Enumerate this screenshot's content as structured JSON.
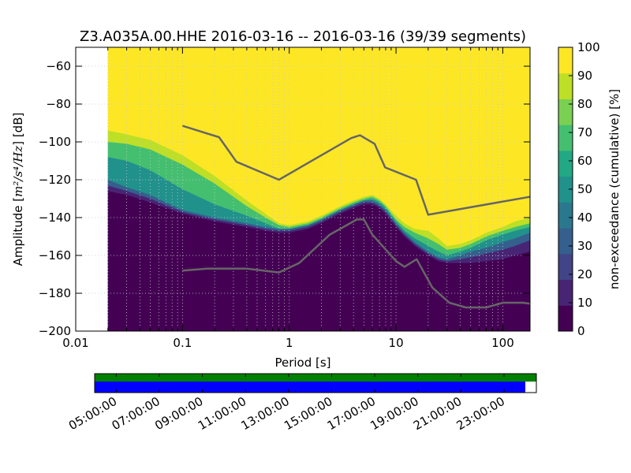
{
  "chart_data": {
    "type": "heatmap",
    "title": "Z3.A035A.00.HHE   2016-03-16 -- 2016-03-16  (39/39 segments)",
    "xlabel": "Period [s]",
    "ylabel_prefix": "Amplitude [",
    "ylabel_math": "m²/s⁴/Hz",
    "ylabel_suffix": "] [dB]",
    "xscale": "log",
    "xlim": [
      0.01,
      180
    ],
    "ylim": [
      -200,
      -50
    ],
    "x_ticks": [
      {
        "value": 0.01,
        "label": "0.01"
      },
      {
        "value": 0.1,
        "label": "0.1"
      },
      {
        "value": 1,
        "label": "1"
      },
      {
        "value": 10,
        "label": "10"
      },
      {
        "value": 100,
        "label": "100"
      }
    ],
    "y_ticks": [
      -60,
      -80,
      -100,
      -120,
      -140,
      -160,
      -180,
      -200
    ],
    "grid": true,
    "data_period_start": 0.02,
    "colorbar": {
      "label": "non-exceedance (cumulative) [%]",
      "range": [
        0,
        100
      ],
      "ticks": [
        0,
        10,
        20,
        30,
        40,
        50,
        60,
        70,
        80,
        90,
        100
      ],
      "colors": [
        "#440154",
        "#482475",
        "#414487",
        "#355f8d",
        "#2a788e",
        "#21918c",
        "#22a884",
        "#44bf70",
        "#7ad151",
        "#bddf26",
        "#fde725"
      ]
    },
    "bands": {
      "period": [
        0.02,
        0.03,
        0.05,
        0.1,
        0.2,
        0.4,
        0.6,
        0.8,
        1,
        1.5,
        2,
        3,
        4,
        5,
        6,
        7,
        8,
        10,
        12,
        15,
        20,
        25,
        30,
        40,
        50,
        70,
        100,
        130,
        180
      ],
      "p0": [
        -126,
        -128,
        -132,
        -138,
        -142,
        -145,
        -147,
        -148,
        -148,
        -146,
        -143,
        -138,
        -135,
        -133,
        -133,
        -135,
        -138,
        -145,
        -150,
        -155,
        -160,
        -163,
        -164,
        -164,
        -164,
        -163,
        -162,
        -160,
        -158
      ],
      "p10": [
        -123,
        -126,
        -130,
        -137,
        -141,
        -144,
        -146,
        -147,
        -147,
        -145,
        -142,
        -137,
        -134,
        -132,
        -132,
        -134,
        -137,
        -144,
        -149,
        -154,
        -159,
        -162,
        -163,
        -162,
        -161,
        -159,
        -157,
        -155,
        -152
      ],
      "p30": [
        -120,
        -124,
        -128,
        -136,
        -140,
        -143,
        -145,
        -146,
        -146,
        -144,
        -141,
        -136,
        -133,
        -131,
        -131,
        -133,
        -136,
        -143,
        -148,
        -153,
        -158,
        -161,
        -162,
        -160,
        -158,
        -156,
        -153,
        -151,
        -148
      ],
      "p60": [
        -108,
        -110,
        -115,
        -125,
        -133,
        -139,
        -143,
        -146,
        -146,
        -144,
        -141,
        -136,
        -133,
        -131,
        -130,
        -132,
        -135,
        -142,
        -147,
        -151,
        -155,
        -158,
        -160,
        -158,
        -156,
        -152,
        -149,
        -147,
        -145
      ],
      "p80": [
        -100,
        -101,
        -104,
        -112,
        -122,
        -134,
        -140,
        -144,
        -145,
        -143,
        -140,
        -135,
        -132,
        -130,
        -129,
        -131,
        -134,
        -141,
        -145,
        -148,
        -151,
        -154,
        -157,
        -156,
        -154,
        -150,
        -147,
        -145,
        -143
      ],
      "p90": [
        -94,
        -96,
        -99,
        -107,
        -118,
        -131,
        -138,
        -143,
        -144,
        -142,
        -139,
        -134,
        -131,
        -129,
        -128,
        -130,
        -133,
        -139,
        -143,
        -146,
        -147,
        -151,
        -155,
        -154,
        -152,
        -148,
        -145,
        -142,
        -140
      ]
    },
    "nlnm": {
      "period": [
        0.1,
        0.17,
        0.4,
        0.8,
        1.24,
        2.4,
        4.3,
        5,
        6,
        10,
        12,
        15.6,
        21.9,
        31.6,
        45,
        70,
        101,
        154,
        180
      ],
      "db": [
        -168,
        -167,
        -167,
        -169,
        -164,
        -149,
        -141,
        -141,
        -149,
        -163,
        -166,
        -162,
        -177,
        -185,
        -187.5,
        -187.5,
        -185,
        -185,
        -185.5
      ]
    },
    "nhnm": {
      "period": [
        0.1,
        0.22,
        0.32,
        0.8,
        3.8,
        4.6,
        6.3,
        7.9,
        15.4,
        20,
        180
      ],
      "db": [
        -91.5,
        -97.5,
        -110.5,
        -120,
        -98,
        -96.5,
        -101,
        -113.5,
        -120,
        -138.5,
        -129
      ]
    },
    "model_line_color": "#666666",
    "background_color": "#fde725"
  },
  "timeline": {
    "tick_labels": [
      "05:00:00",
      "07:00:00",
      "09:00:00",
      "11:00:00",
      "13:00:00",
      "15:00:00",
      "17:00:00",
      "19:00:00",
      "21:00:00",
      "23:00:00"
    ],
    "start_hour": 4.0,
    "end_hour": 24.5,
    "coverage_fraction": 0.975,
    "data_color": "#0000ff",
    "availability_color": "#008000"
  }
}
